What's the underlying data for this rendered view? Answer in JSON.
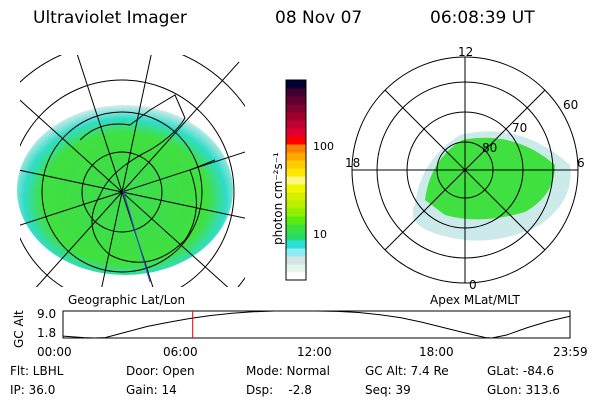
{
  "header": {
    "title": "Ultraviolet Imager",
    "date": "08 Nov 07",
    "time": "06:08:39 UT"
  },
  "colorbar": {
    "label": "photon cm⁻²s⁻¹",
    "ticks": [
      "100",
      "10"
    ],
    "colors": [
      "#ffffff",
      "#e8f4ee",
      "#d4e4e4",
      "#90ecf4",
      "#28e0d8",
      "#28dc68",
      "#3ce040",
      "#58ec10",
      "#90f000",
      "#b8f000",
      "#d8f000",
      "#f0f800",
      "#fff880",
      "#ffe800",
      "#ffcc00",
      "#ffa800",
      "#ff8000",
      "#ff0000",
      "#e00030",
      "#c00030",
      "#a00030",
      "#800030",
      "#600030",
      "#400030",
      "#000030"
    ]
  },
  "left_map": {
    "caption": "Geographic Lat/Lon"
  },
  "right_map": {
    "caption": "Apex MLat/MLT",
    "mlt_labels": {
      "top": "12",
      "bottom": "0",
      "left": "18",
      "right": "6"
    },
    "lat_labels": [
      "60",
      "70",
      "80"
    ]
  },
  "chart_data": {
    "type": "line",
    "ylabel": "GC Alt",
    "yticks": [
      "9.0",
      "1.8"
    ],
    "ylim": [
      1.8,
      9.0
    ],
    "xticks": [
      "00:00",
      "06:00",
      "12:00",
      "18:00",
      "23:59"
    ],
    "x_hours": [
      0,
      1,
      1.5,
      2,
      3,
      4,
      5,
      6,
      7,
      8,
      9,
      10,
      11,
      12,
      13,
      14,
      15,
      16,
      17,
      18,
      19,
      20,
      20.3,
      21,
      22,
      23,
      24
    ],
    "y": [
      2.3,
      1.9,
      1.8,
      1.9,
      3.4,
      4.9,
      6.0,
      7.0,
      7.8,
      8.4,
      8.8,
      9.0,
      9.0,
      9.0,
      8.9,
      8.6,
      8.0,
      7.2,
      6.0,
      4.6,
      3.2,
      1.9,
      1.8,
      2.6,
      4.6,
      6.3,
      7.6
    ],
    "marker_time_hours": 6.14,
    "marker_color": "#e00000"
  },
  "info": [
    [
      "Flt: LBHL",
      "IP: 36.0"
    ],
    [
      "Door: Open",
      "Gain: 14"
    ],
    [
      "Mode: Normal",
      "Dsp:    -2.8"
    ],
    [
      "GC Alt: 7.4 Re",
      "Seq: 39"
    ],
    [
      "GLat: -84.6",
      "GLon: 313.6"
    ]
  ]
}
